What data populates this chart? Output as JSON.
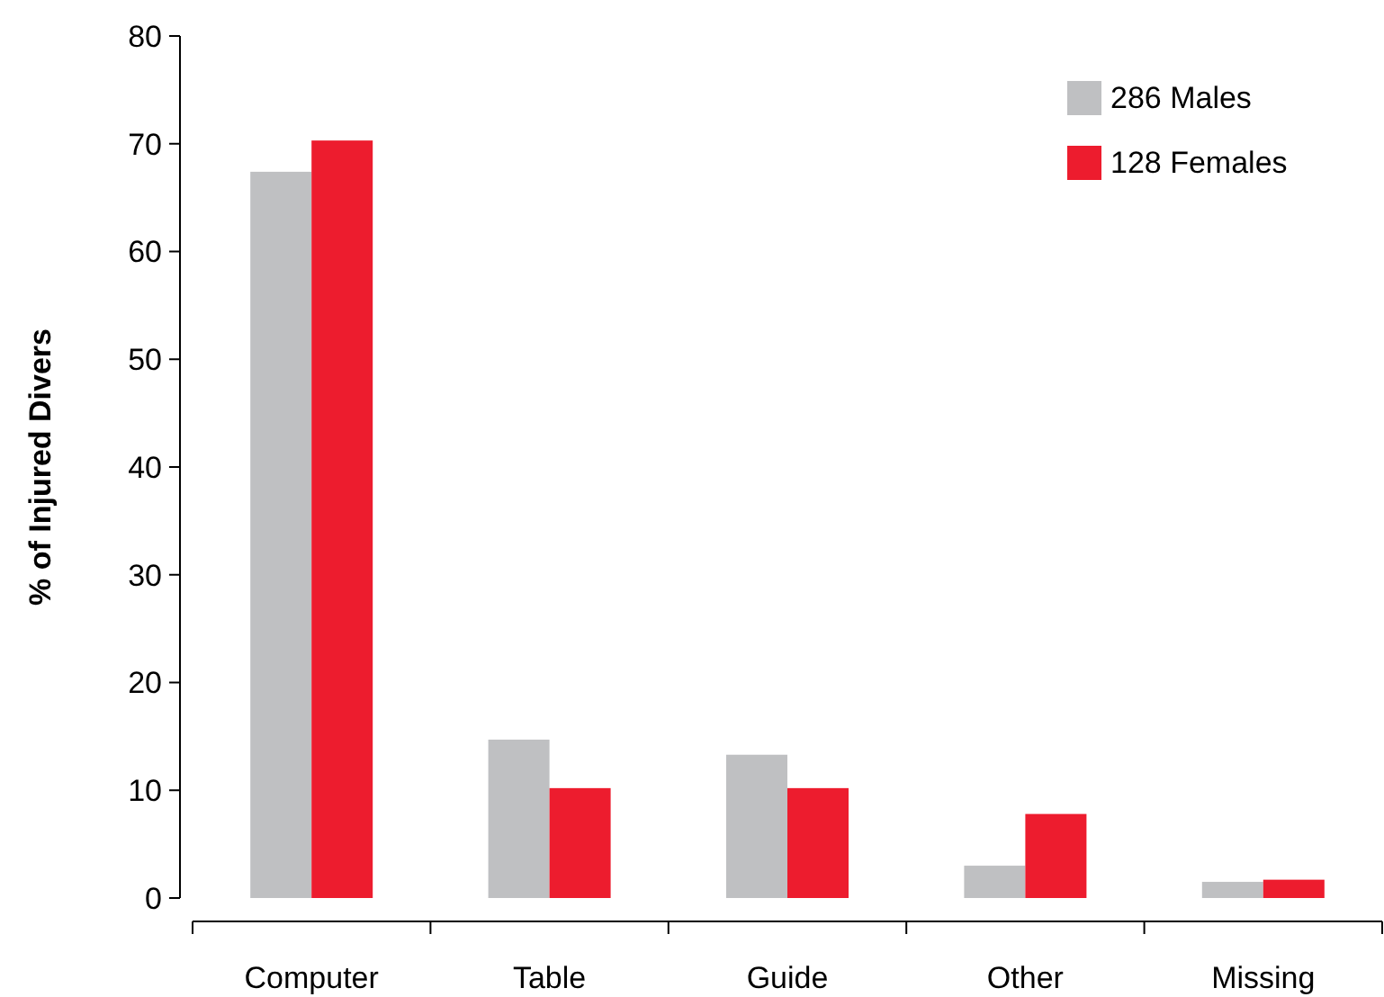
{
  "chart_data": {
    "type": "bar",
    "ylabel": "% of Injured Divers",
    "categories": [
      "Computer",
      "Table",
      "Guide",
      "Other",
      "Missing"
    ],
    "series": [
      {
        "name": "286 Males",
        "color": "#bfc0c2",
        "values": [
          67.4,
          14.7,
          13.3,
          3.0,
          1.5
        ]
      },
      {
        "name": "128 Females",
        "color": "#ed1c2e",
        "values": [
          70.3,
          10.2,
          10.2,
          7.8,
          1.7
        ]
      }
    ],
    "ylim": [
      0,
      80
    ],
    "yticks": [
      0,
      10,
      20,
      30,
      40,
      50,
      60,
      70,
      80
    ],
    "grid": false,
    "legend": "top right"
  }
}
